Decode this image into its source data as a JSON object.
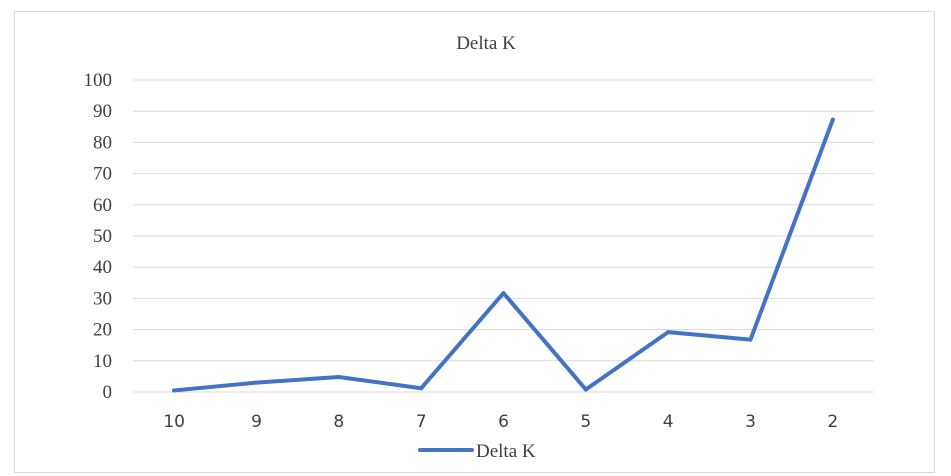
{
  "chart_data": {
    "type": "line",
    "title": "Delta K",
    "xlabel": "",
    "ylabel": "",
    "categories": [
      "10",
      "9",
      "8",
      "7",
      "6",
      "5",
      "4",
      "3",
      "2"
    ],
    "series": [
      {
        "name": "Delta K",
        "values": [
          0.5,
          3,
          4.8,
          1.2,
          31.7,
          0.8,
          19.2,
          16.8,
          87.3
        ],
        "color": "#4472c4"
      }
    ],
    "ylim": [
      0,
      100
    ],
    "yticks": [
      "0",
      "10",
      "20",
      "30",
      "40",
      "50",
      "60",
      "70",
      "80",
      "90",
      "100"
    ],
    "grid": true,
    "legend_position": "bottom"
  }
}
